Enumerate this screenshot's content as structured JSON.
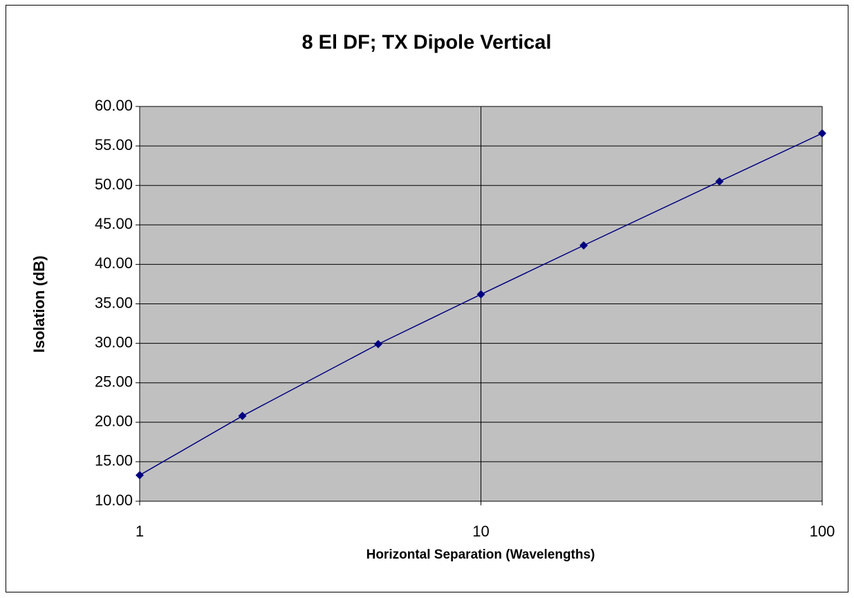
{
  "chart_data": {
    "type": "line",
    "title": "8 El DF; TX Dipole Vertical",
    "xlabel": "Horizontal Separation (Wavelengths)",
    "ylabel": "Isolation (dB)",
    "x": [
      1,
      2,
      5,
      10,
      20,
      50,
      100
    ],
    "series": [
      {
        "color": "#000080",
        "values": [
          13.3,
          20.8,
          29.9,
          36.2,
          42.4,
          50.5,
          56.6
        ]
      }
    ],
    "xscale": "log",
    "xlim": [
      1,
      100
    ],
    "xticks": [
      1,
      10,
      100
    ],
    "ylim": [
      10,
      60
    ],
    "yticks": [
      {
        "value": 10,
        "label": "10.00"
      },
      {
        "value": 15,
        "label": "15.00"
      },
      {
        "value": 20,
        "label": "20.00"
      },
      {
        "value": 25,
        "label": "25.00"
      },
      {
        "value": 30,
        "label": "30.00"
      },
      {
        "value": 35,
        "label": "35.00"
      },
      {
        "value": 40,
        "label": "40.00"
      },
      {
        "value": 45,
        "label": "45.00"
      },
      {
        "value": 50,
        "label": "50.00"
      },
      {
        "value": 55,
        "label": "55.00"
      },
      {
        "value": 60,
        "label": "60.00"
      }
    ],
    "grid": true,
    "plot_background": "#c0c0c0"
  }
}
